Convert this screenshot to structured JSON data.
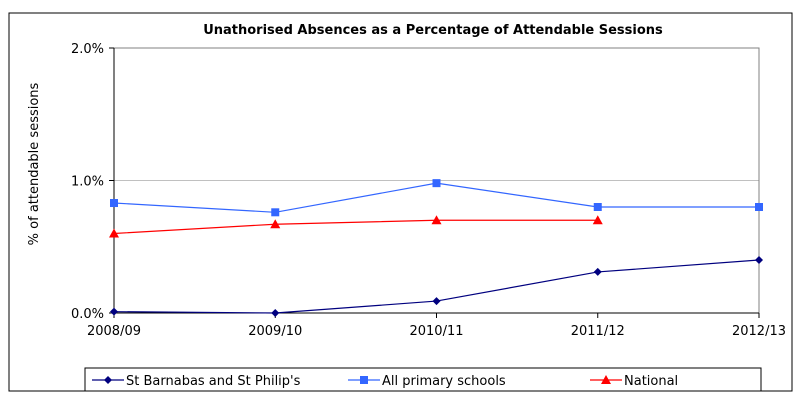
{
  "chart_data": {
    "type": "line",
    "title": "Unathorised Absences as a Percentage of Attendable Sessions",
    "xlabel": "",
    "ylabel": "% of attendable sessions",
    "categories": [
      "2008/09",
      "2009/10",
      "2010/11",
      "2011/12",
      "2012/13"
    ],
    "ylim": [
      0,
      2
    ],
    "yticks": [
      {
        "value": 0,
        "label": "0.0%"
      },
      {
        "value": 1,
        "label": "1.0%"
      },
      {
        "value": 2,
        "label": "2.0%"
      }
    ],
    "grid": "horizontal",
    "legend_position": "bottom",
    "series": [
      {
        "name": "St Barnabas and St Philip's",
        "color": "#00007f",
        "marker": "diamond",
        "values": [
          0.01,
          0.0,
          0.09,
          0.31,
          0.4
        ]
      },
      {
        "name": "All primary schools",
        "color": "#3366ff",
        "marker": "square",
        "values": [
          0.83,
          0.76,
          0.98,
          0.8,
          0.8
        ]
      },
      {
        "name": "National",
        "color": "#ff0000",
        "marker": "triangle",
        "values": [
          0.6,
          0.67,
          0.7,
          0.7,
          null
        ]
      }
    ]
  }
}
